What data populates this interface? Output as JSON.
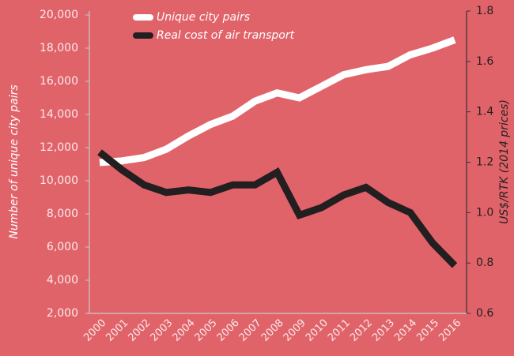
{
  "chart_data": {
    "type": "line",
    "y_label": "Number of unique city pairs",
    "y2_label": "US$/RTK (2014 prices)",
    "categories": [
      "2000",
      "2001",
      "2002",
      "2003",
      "2004",
      "2005",
      "2006",
      "2007",
      "2008",
      "2009",
      "2010",
      "2011",
      "2012",
      "2013",
      "2014",
      "2015",
      "2016"
    ],
    "series": [
      {
        "name": "Unique city pairs",
        "color": "#ffffff",
        "values": [
          11100,
          11200,
          11400,
          11900,
          12700,
          13400,
          13900,
          14800,
          15300,
          15000,
          15700,
          16400,
          16700,
          16900,
          17600,
          18000,
          18500
        ]
      },
      {
        "name": "Real cost of air transport",
        "color": "#231f20",
        "axis": "y2",
        "values": [
          1.24,
          1.17,
          1.11,
          1.08,
          1.09,
          1.08,
          1.11,
          1.11,
          1.16,
          0.99,
          1.02,
          1.07,
          1.1,
          1.04,
          1.0,
          0.88,
          0.79
        ]
      }
    ],
    "ylim": [
      2000,
      20000
    ],
    "yticks": [
      {
        "value": 2000,
        "label": "2,000"
      },
      {
        "value": 4000,
        "label": "4,000"
      },
      {
        "value": 6000,
        "label": "6,000"
      },
      {
        "value": 8000,
        "label": "8,000"
      },
      {
        "value": 10000,
        "label": "10,000"
      },
      {
        "value": 12000,
        "label": "12,000"
      },
      {
        "value": 14000,
        "label": "14,000"
      },
      {
        "value": 16000,
        "label": "16,000"
      },
      {
        "value": 18000,
        "label": "18,000"
      },
      {
        "value": 20000,
        "label": "20,000"
      }
    ],
    "y2lim": [
      0.6,
      1.8
    ],
    "y2ticks": [
      0.6,
      0.8,
      {
        "value": 1,
        "label": "1.0"
      },
      1.2,
      1.4,
      1.6,
      1.8
    ],
    "legend": "top-left"
  }
}
